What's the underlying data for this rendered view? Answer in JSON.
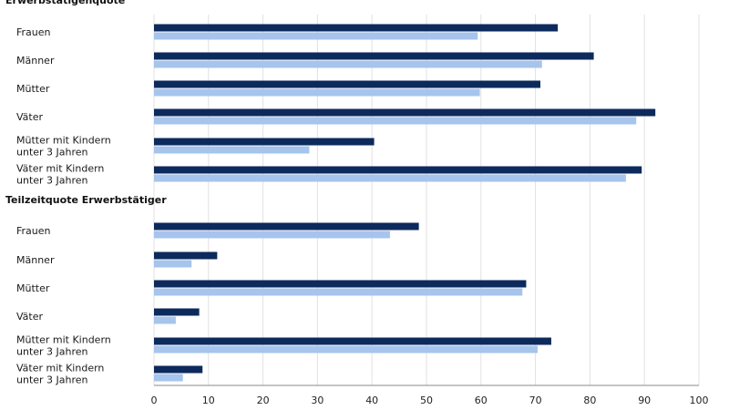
{
  "chart_data": {
    "type": "bar",
    "orientation": "horizontal",
    "grid": true,
    "xlim": [
      0,
      100
    ],
    "x_ticks": [
      0,
      10,
      20,
      30,
      40,
      50,
      60,
      70,
      80,
      90,
      100
    ],
    "colors": {
      "series_dark": "#0d2a5c",
      "series_light": "#a6c4ec"
    },
    "sections": [
      {
        "title": "Erwerbstätigenquote",
        "categories": [
          [
            "Frauen"
          ],
          [
            "Männer"
          ],
          [
            "Mütter"
          ],
          [
            "Väter"
          ],
          [
            "Mütter mit Kindern",
            "unter 3 Jahren"
          ],
          [
            "Väter mit Kindern",
            "unter 3 Jahren"
          ]
        ],
        "series": [
          {
            "values": [
              74.1,
              80.7,
              70.9,
              92.0,
              40.4,
              89.5
            ]
          },
          {
            "values": [
              59.4,
              71.2,
              59.8,
              88.5,
              28.5,
              86.6
            ]
          }
        ]
      },
      {
        "title": "Teilzeitquote Erwerbstätiger",
        "categories": [
          [
            "Frauen"
          ],
          [
            "Männer"
          ],
          [
            "Mütter"
          ],
          [
            "Väter"
          ],
          [
            "Mütter mit Kindern",
            "unter 3 Jahren"
          ],
          [
            "Väter mit Kindern",
            "unter 3 Jahren"
          ]
        ],
        "series": [
          {
            "values": [
              48.6,
              11.6,
              68.3,
              8.3,
              72.9,
              8.9
            ]
          },
          {
            "values": [
              43.3,
              6.9,
              67.6,
              4.0,
              70.4,
              5.3
            ]
          }
        ]
      }
    ]
  }
}
